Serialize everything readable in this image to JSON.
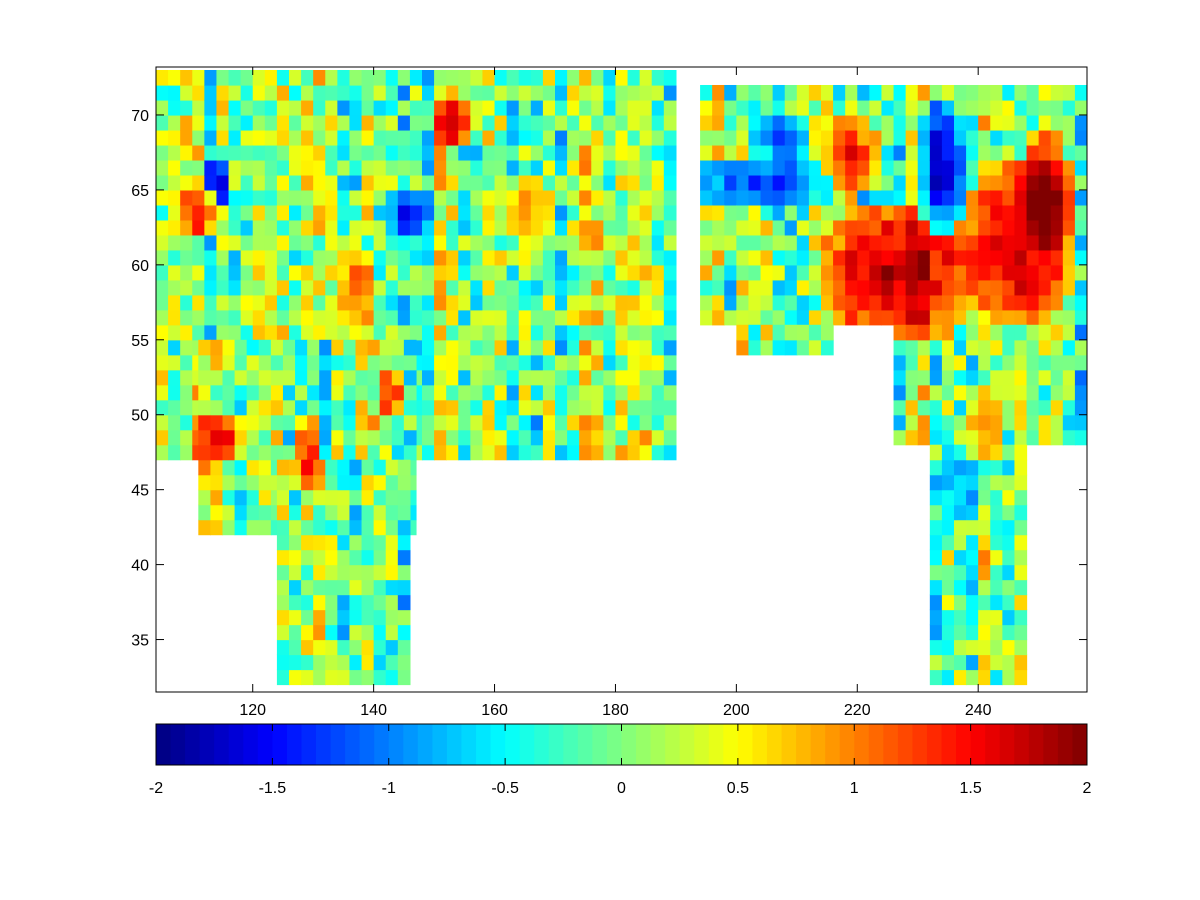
{
  "chart_data": {
    "type": "heatmap",
    "title": "",
    "xlabel": "",
    "ylabel": "",
    "xlim": [
      104,
      258
    ],
    "ylim": [
      31.5,
      73.2
    ],
    "x_ticks": [
      120,
      140,
      160,
      180,
      200,
      220,
      240
    ],
    "x_tick_labels": [
      "120",
      "140",
      "160",
      "180",
      "200",
      "220",
      "240"
    ],
    "y_ticks": [
      35,
      40,
      45,
      50,
      55,
      60,
      65,
      70
    ],
    "y_tick_labels": [
      "35",
      "40",
      "45",
      "50",
      "55",
      "60",
      "65",
      "70"
    ],
    "grid": false,
    "colormap": "jet",
    "colorbar": {
      "orientation": "horizontal",
      "location": "below",
      "clim": [
        -2,
        2
      ],
      "ticks": [
        -2,
        -1.5,
        -1,
        -0.5,
        0,
        0.5,
        1,
        1.5,
        2
      ],
      "tick_labels": [
        "-2",
        "-1.5",
        "-1",
        "-0.5",
        "0",
        "0.5",
        "1",
        "1.5",
        "2"
      ],
      "levels": 64
    },
    "cell_size": {
      "dlon": 2,
      "dlat": 1
    },
    "regions": [
      {
        "name": "",
        "lon": [
          104,
          190
        ],
        "lat": [
          47,
          73
        ]
      },
      {
        "name": "",
        "lon": [
          111,
          146
        ],
        "lat": [
          42,
          55
        ]
      },
      {
        "name": "",
        "lon": [
          124,
          146
        ],
        "lat": [
          32,
          48
        ]
      },
      {
        "name": "",
        "lon": [
          158,
          172
        ],
        "lat": [
          51,
          61
        ]
      },
      {
        "name": "",
        "lon": [
          194,
          258
        ],
        "lat": [
          56,
          72
        ]
      },
      {
        "name": "",
        "lon": [
          200,
          216
        ],
        "lat": [
          54,
          61
        ]
      },
      {
        "name": "",
        "lon": [
          226,
          258
        ],
        "lat": [
          48,
          62
        ]
      },
      {
        "name": "",
        "lon": [
          232,
          248
        ],
        "lat": [
          32,
          48
        ]
      }
    ],
    "features": [
      {
        "lon": 226,
        "lat": 59,
        "value": 1.8,
        "rx": 14,
        "ry": 5
      },
      {
        "lon": 246,
        "lat": 61,
        "value": 1.7,
        "rx": 10,
        "ry": 6
      },
      {
        "lon": 250,
        "lat": 64,
        "value": 1.6,
        "rx": 5,
        "ry": 5
      },
      {
        "lon": 233,
        "lat": 66,
        "value": -1.6,
        "rx": 4,
        "ry": 5
      },
      {
        "lon": 202,
        "lat": 65,
        "value": -1.2,
        "rx": 14,
        "ry": 2
      },
      {
        "lon": 206,
        "lat": 68,
        "value": -1.0,
        "rx": 6,
        "ry": 2
      },
      {
        "lon": 218,
        "lat": 67,
        "value": 1.4,
        "rx": 5,
        "ry": 3
      },
      {
        "lon": 113,
        "lat": 65,
        "value": -1.6,
        "rx": 3,
        "ry": 2
      },
      {
        "lon": 110,
        "lat": 63,
        "value": 1.4,
        "rx": 4,
        "ry": 2
      },
      {
        "lon": 152,
        "lat": 69,
        "value": 1.5,
        "rx": 4,
        "ry": 2
      },
      {
        "lon": 145,
        "lat": 63,
        "value": -1.3,
        "rx": 4,
        "ry": 2
      },
      {
        "lon": 136,
        "lat": 58,
        "value": 1.2,
        "rx": 3,
        "ry": 4
      },
      {
        "lon": 113,
        "lat": 48,
        "value": 1.4,
        "rx": 5,
        "ry": 2
      },
      {
        "lon": 142,
        "lat": 51,
        "value": 1.2,
        "rx": 3,
        "ry": 2
      },
      {
        "lon": 128,
        "lat": 47,
        "value": 1.3,
        "rx": 3,
        "ry": 3
      },
      {
        "lon": 165,
        "lat": 63,
        "value": 1.0,
        "rx": 4,
        "ry": 3
      },
      {
        "lon": 236,
        "lat": 45,
        "value": -0.8,
        "rx": 5,
        "ry": 3
      },
      {
        "lon": 240,
        "lat": 49,
        "value": 0.8,
        "rx": 4,
        "ry": 3
      }
    ]
  }
}
